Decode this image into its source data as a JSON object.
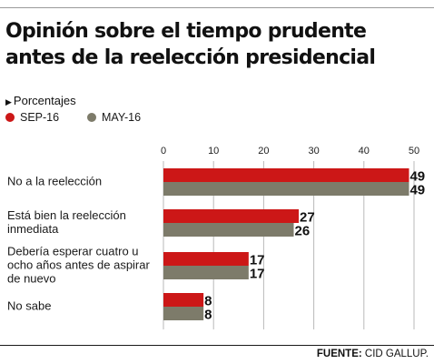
{
  "title_lines": [
    "Opinión sobre el tiempo prudente",
    "antes de la reelección presidencial"
  ],
  "subtitle": "Porcentajes",
  "colors": {
    "sep16": "#cc1717",
    "may16": "#7d7b6a",
    "grid": "#b9b9b9"
  },
  "source": {
    "label": "FUENTE:",
    "text": " CID GALLUP."
  },
  "chart_data": {
    "type": "bar",
    "orientation": "horizontal",
    "categories": [
      [
        "No a la reelección"
      ],
      [
        "Está bien la reelección",
        "inmediata"
      ],
      [
        "Debería esperar cuatro u",
        "ocho años antes de aspirar",
        "de nuevo"
      ],
      [
        "No sabe"
      ]
    ],
    "series": [
      {
        "name": "SEP-16",
        "values": [
          49,
          27,
          17,
          8
        ]
      },
      {
        "name": "MAY-16",
        "values": [
          49,
          26,
          17,
          8
        ]
      }
    ],
    "xticks": [
      0,
      10,
      20,
      30,
      40,
      50
    ],
    "xlim": [
      0,
      50
    ],
    "grid": true,
    "legend_position": "top-left"
  }
}
